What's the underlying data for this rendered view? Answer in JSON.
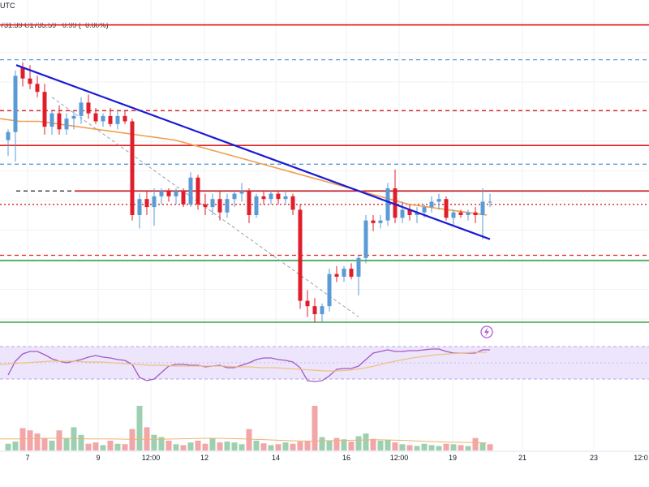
{
  "header": {
    "timezone": "UTC",
    "quote": "731.39",
    "close": "C1735.59",
    "change": "−0.99 (−0.06%)"
  },
  "colors": {
    "bull": "#5b9bd5",
    "bear": "#e01e2b",
    "trendline": "#1a1ad6",
    "moving_average": "#f0a050",
    "resistance": "#e11d1d",
    "support": "#3aa24a",
    "rsi_line": "#a05ac8",
    "rsi_band": "#ede5fb",
    "volume_up": "#9dd0b0",
    "volume_down": "#f2a6a8"
  },
  "chart_data": [
    {
      "type": "candlestick",
      "panel": "price",
      "grid": true,
      "x_ticks": [
        "7",
        "9",
        "12:00",
        "12",
        "14",
        "16",
        "12:00",
        "19",
        "21",
        "23",
        "12:0"
      ],
      "ylim": [
        0,
        100
      ],
      "candles": [
        {
          "o": 68,
          "h": 72,
          "l": 62,
          "c": 71
        },
        {
          "o": 71,
          "h": 94,
          "l": 60,
          "c": 92
        },
        {
          "o": 95,
          "h": 97,
          "l": 88,
          "c": 91
        },
        {
          "o": 91,
          "h": 96,
          "l": 87,
          "c": 89
        },
        {
          "o": 89,
          "h": 92,
          "l": 84,
          "c": 86
        },
        {
          "o": 86,
          "h": 89,
          "l": 70,
          "c": 73
        },
        {
          "o": 73,
          "h": 79,
          "l": 70,
          "c": 78
        },
        {
          "o": 78,
          "h": 81,
          "l": 70,
          "c": 72
        },
        {
          "o": 72,
          "h": 78,
          "l": 70,
          "c": 76
        },
        {
          "o": 76,
          "h": 79,
          "l": 72,
          "c": 77
        },
        {
          "o": 77,
          "h": 84,
          "l": 74,
          "c": 82
        },
        {
          "o": 82,
          "h": 85,
          "l": 76,
          "c": 78
        },
        {
          "o": 78,
          "h": 80,
          "l": 74,
          "c": 75
        },
        {
          "o": 75,
          "h": 78,
          "l": 73,
          "c": 77
        },
        {
          "o": 77,
          "h": 80,
          "l": 73,
          "c": 74
        },
        {
          "o": 74,
          "h": 79,
          "l": 72,
          "c": 77
        },
        {
          "o": 77,
          "h": 79,
          "l": 74,
          "c": 75
        },
        {
          "o": 75,
          "h": 76,
          "l": 38,
          "c": 40
        },
        {
          "o": 40,
          "h": 48,
          "l": 35,
          "c": 46
        },
        {
          "o": 46,
          "h": 49,
          "l": 40,
          "c": 43
        },
        {
          "o": 43,
          "h": 50,
          "l": 36,
          "c": 47
        },
        {
          "o": 47,
          "h": 50,
          "l": 44,
          "c": 49
        },
        {
          "o": 49,
          "h": 50,
          "l": 45,
          "c": 47
        },
        {
          "o": 47,
          "h": 50,
          "l": 44,
          "c": 49
        },
        {
          "o": 49,
          "h": 50,
          "l": 43,
          "c": 44
        },
        {
          "o": 44,
          "h": 56,
          "l": 43,
          "c": 54
        },
        {
          "o": 54,
          "h": 55,
          "l": 42,
          "c": 44
        },
        {
          "o": 44,
          "h": 48,
          "l": 40,
          "c": 43
        },
        {
          "o": 43,
          "h": 48,
          "l": 40,
          "c": 46
        },
        {
          "o": 46,
          "h": 49,
          "l": 38,
          "c": 41
        },
        {
          "o": 41,
          "h": 48,
          "l": 39,
          "c": 46
        },
        {
          "o": 46,
          "h": 49,
          "l": 43,
          "c": 48
        },
        {
          "o": 48,
          "h": 52,
          "l": 45,
          "c": 49
        },
        {
          "o": 49,
          "h": 50,
          "l": 37,
          "c": 40
        },
        {
          "o": 40,
          "h": 48,
          "l": 39,
          "c": 47
        },
        {
          "o": 47,
          "h": 49,
          "l": 44,
          "c": 46
        },
        {
          "o": 46,
          "h": 49,
          "l": 44,
          "c": 48
        },
        {
          "o": 48,
          "h": 49,
          "l": 44,
          "c": 46
        },
        {
          "o": 46,
          "h": 49,
          "l": 44,
          "c": 47
        },
        {
          "o": 47,
          "h": 48,
          "l": 40,
          "c": 42
        },
        {
          "o": 42,
          "h": 44,
          "l": 5,
          "c": 8
        },
        {
          "o": 8,
          "h": 12,
          "l": 2,
          "c": 6
        },
        {
          "o": 6,
          "h": 9,
          "l": 0,
          "c": 3
        },
        {
          "o": 3,
          "h": 7,
          "l": 0,
          "c": 6
        },
        {
          "o": 6,
          "h": 20,
          "l": 4,
          "c": 18
        },
        {
          "o": 18,
          "h": 21,
          "l": 15,
          "c": 17
        },
        {
          "o": 17,
          "h": 21,
          "l": 15,
          "c": 20
        },
        {
          "o": 20,
          "h": 22,
          "l": 16,
          "c": 17
        },
        {
          "o": 17,
          "h": 25,
          "l": 10,
          "c": 24
        },
        {
          "o": 24,
          "h": 40,
          "l": 22,
          "c": 38
        },
        {
          "o": 38,
          "h": 40,
          "l": 34,
          "c": 37
        },
        {
          "o": 37,
          "h": 40,
          "l": 35,
          "c": 38
        },
        {
          "o": 38,
          "h": 52,
          "l": 36,
          "c": 50
        },
        {
          "o": 50,
          "h": 57,
          "l": 37,
          "c": 39
        },
        {
          "o": 39,
          "h": 45,
          "l": 37,
          "c": 42
        },
        {
          "o": 42,
          "h": 44,
          "l": 38,
          "c": 40
        },
        {
          "o": 40,
          "h": 43,
          "l": 37,
          "c": 41
        },
        {
          "o": 41,
          "h": 44,
          "l": 39,
          "c": 43
        },
        {
          "o": 43,
          "h": 47,
          "l": 41,
          "c": 45
        },
        {
          "o": 45,
          "h": 48,
          "l": 42,
          "c": 46
        },
        {
          "o": 46,
          "h": 47,
          "l": 38,
          "c": 39
        },
        {
          "o": 39,
          "h": 42,
          "l": 36,
          "c": 41
        },
        {
          "o": 41,
          "h": 42,
          "l": 39,
          "c": 40
        },
        {
          "o": 40,
          "h": 42,
          "l": 38,
          "c": 41
        },
        {
          "o": 41,
          "h": 43,
          "l": 37,
          "c": 40
        },
        {
          "o": 40,
          "h": 50,
          "l": 31,
          "c": 45
        },
        {
          "o": 45,
          "h": 48,
          "l": 43,
          "c": 45
        }
      ],
      "moving_average": [
        76,
        75,
        75,
        74,
        73,
        72,
        71,
        70,
        69,
        68,
        66,
        64,
        62,
        60,
        58,
        56,
        54,
        52,
        50,
        48,
        46,
        44,
        43,
        42,
        41,
        40
      ],
      "horizontal_levels": [
        {
          "value": 111,
          "color": "#e11d1d",
          "style": "solid"
        },
        {
          "value": 98,
          "color": "#5b9bd5",
          "style": "dashed"
        },
        {
          "value": 79,
          "color": "#e11d1d",
          "style": "dashed"
        },
        {
          "value": 66,
          "color": "#e11d1d",
          "style": "solid"
        },
        {
          "value": 59,
          "color": "#5b9bd5",
          "style": "dashed"
        },
        {
          "value": 49,
          "color": "#333333",
          "style": "dashed"
        },
        {
          "value": 49,
          "color": "#c2121b",
          "style": "solid"
        },
        {
          "value": 44,
          "color": "#e11d1d",
          "style": "dotted"
        },
        {
          "value": 25,
          "color": "#e11d1d",
          "style": "dashed"
        },
        {
          "value": 23,
          "color": "#3aa24a",
          "style": "solid"
        },
        {
          "value": 0,
          "color": "#3aa24a",
          "style": "solid"
        }
      ],
      "trendline": {
        "from": [
          1,
          96
        ],
        "to": [
          66,
          31
        ]
      },
      "dashed_trendline": {
        "from": [
          6,
          84
        ],
        "to": [
          48,
          2
        ]
      }
    },
    {
      "type": "line",
      "panel": "rsi",
      "ylim": [
        0,
        100
      ],
      "band": [
        30,
        70
      ],
      "rsi": [
        35,
        52,
        61,
        64,
        64,
        60,
        55,
        52,
        50,
        52,
        54,
        57,
        59,
        57,
        56,
        54,
        53,
        48,
        32,
        28,
        30,
        38,
        46,
        48,
        48,
        47,
        47,
        45,
        46,
        47,
        44,
        44,
        47,
        50,
        54,
        56,
        56,
        54,
        53,
        51,
        44,
        28,
        27,
        28,
        34,
        42,
        43,
        43,
        46,
        54,
        62,
        64,
        66,
        64,
        64,
        65,
        65,
        66,
        67,
        67,
        64,
        62,
        62,
        62,
        62,
        66,
        66
      ],
      "rsi_ma": [
        48,
        49,
        50,
        51,
        52,
        52,
        52,
        51,
        51,
        50,
        49,
        48,
        47,
        47,
        46,
        46,
        46,
        46,
        46,
        45,
        45,
        44,
        44,
        43,
        42,
        41,
        40,
        40,
        41,
        43,
        46,
        50,
        53,
        56,
        58,
        60,
        61,
        62,
        63,
        63
      ]
    },
    {
      "type": "bar",
      "panel": "volume",
      "volume_up": [
        true,
        true,
        false,
        false,
        false,
        false,
        true,
        false,
        true,
        true,
        true,
        false,
        false,
        true,
        false,
        true,
        false,
        false,
        true,
        false,
        true,
        true,
        false,
        true,
        false,
        true,
        false,
        false,
        true,
        false,
        true,
        true,
        true,
        false,
        true,
        false,
        true,
        false,
        true,
        false,
        false,
        false,
        false,
        true,
        true,
        false,
        true,
        false,
        true,
        true,
        false,
        true,
        true,
        false,
        true,
        false,
        true,
        true,
        true,
        true,
        false,
        true,
        false,
        true,
        false,
        true,
        false
      ],
      "values": [
        15,
        20,
        50,
        45,
        38,
        28,
        22,
        45,
        28,
        52,
        35,
        15,
        18,
        12,
        22,
        15,
        14,
        48,
        100,
        52,
        35,
        30,
        22,
        14,
        12,
        18,
        22,
        15,
        28,
        18,
        20,
        18,
        14,
        48,
        22,
        16,
        12,
        14,
        18,
        15,
        20,
        22,
        100,
        30,
        22,
        28,
        25,
        20,
        32,
        38,
        26,
        22,
        24,
        18,
        14,
        12,
        10,
        15,
        12,
        10,
        15,
        14,
        12,
        10,
        28,
        18,
        14
      ],
      "volume_ma": [
        26,
        26,
        27,
        27,
        26,
        26,
        25,
        25,
        26,
        27,
        27,
        26,
        24,
        22,
        21,
        22,
        23,
        24,
        23,
        21,
        19,
        18,
        17
      ]
    }
  ]
}
